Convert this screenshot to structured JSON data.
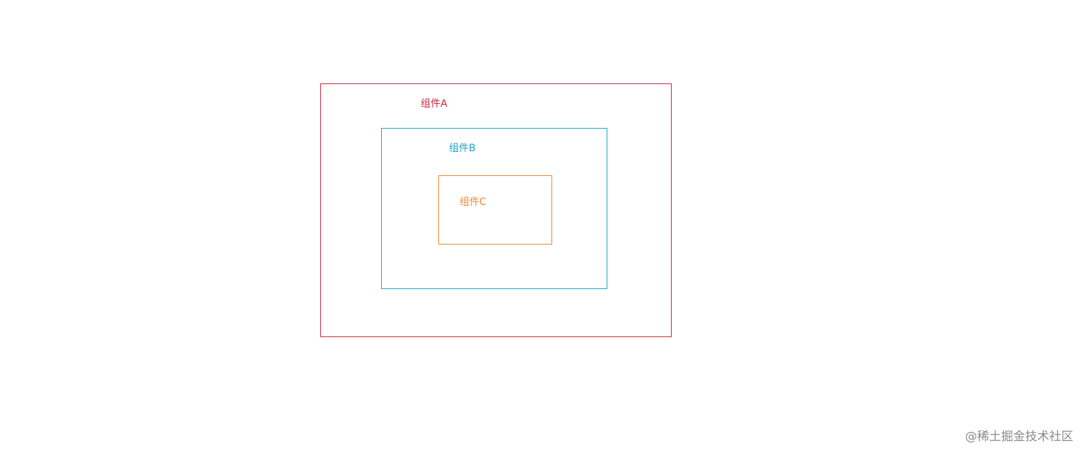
{
  "components": [
    {
      "id": "a",
      "label": "组件A",
      "color": "#d0233f"
    },
    {
      "id": "b",
      "label": "组件B",
      "color": "#1aa5c2"
    },
    {
      "id": "c",
      "label": "组件C",
      "color": "#e8893a"
    }
  ],
  "watermark": "@稀土掘金技术社区"
}
